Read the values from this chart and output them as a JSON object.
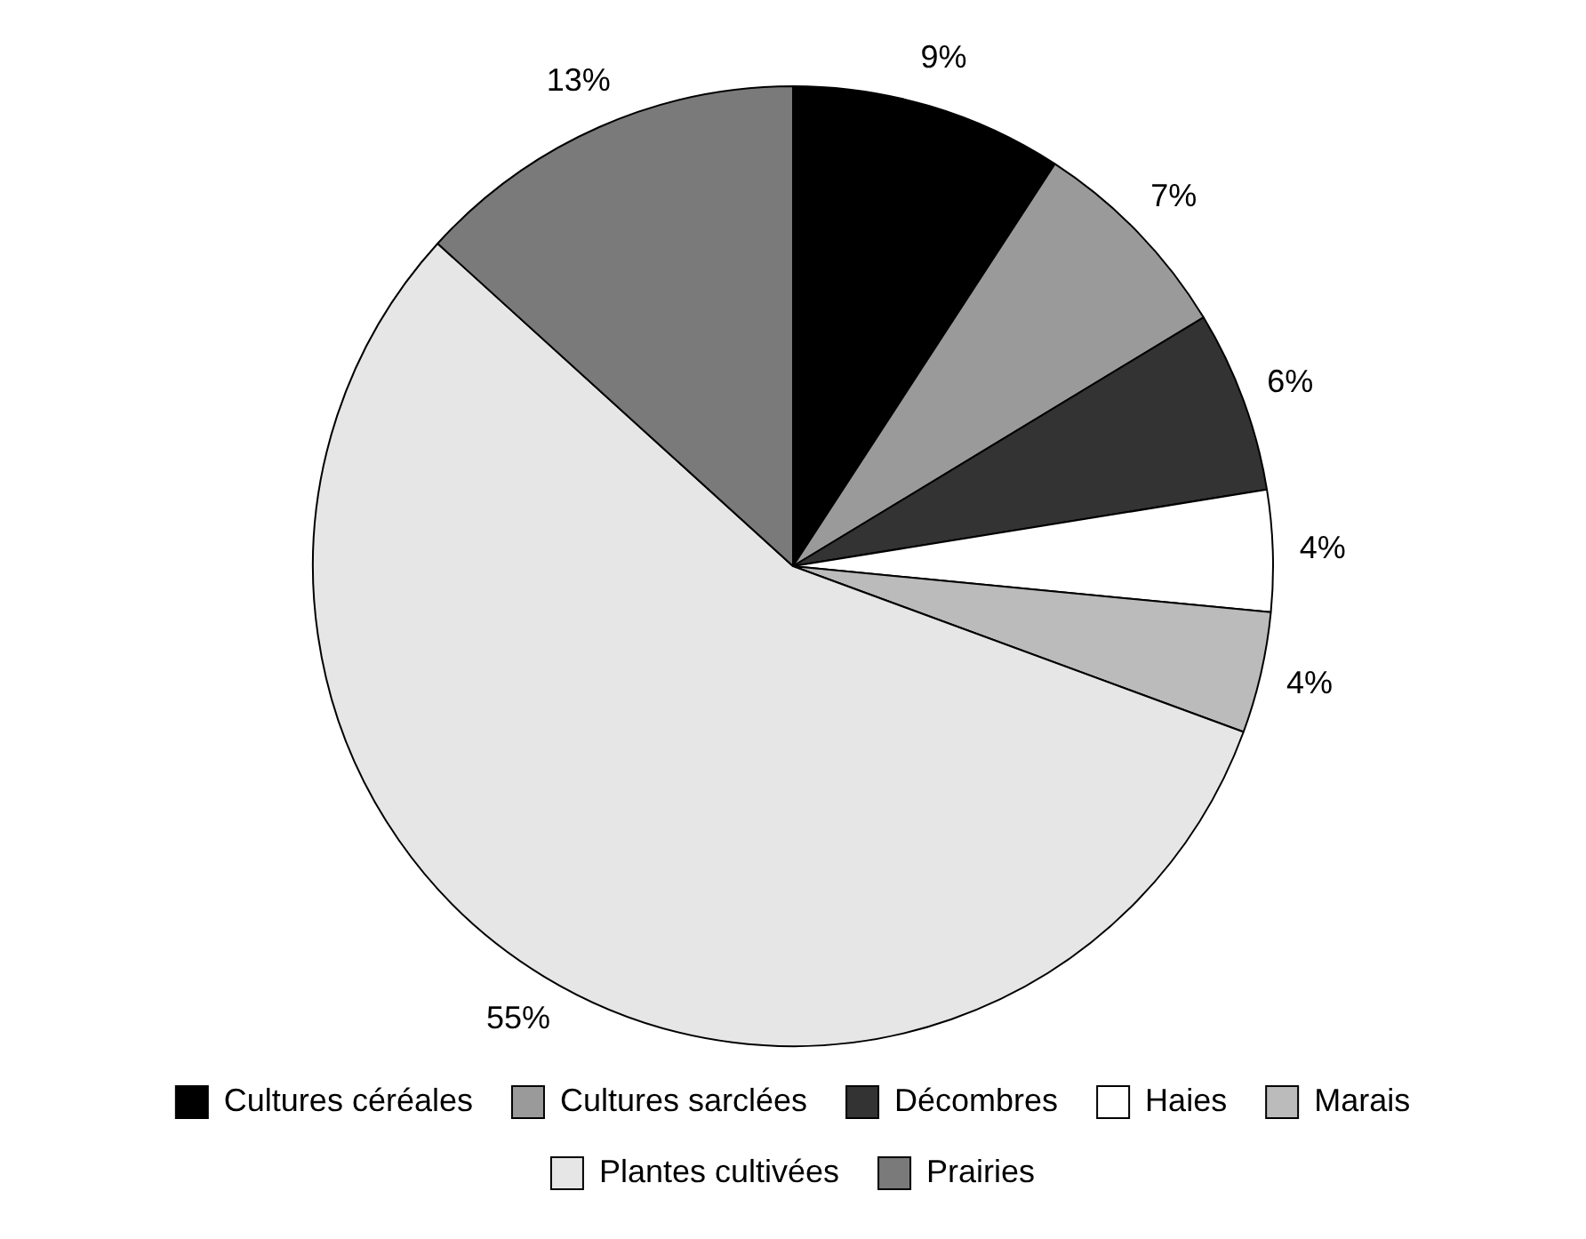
{
  "chart_data": {
    "type": "pie",
    "categories": [
      "Cultures céréales",
      "Cultures sarclées",
      "Décombres",
      "Haies",
      "Marais",
      "Plantes cultivées",
      "Prairies"
    ],
    "values": [
      9,
      7,
      6,
      4,
      4,
      55,
      13
    ],
    "colors": [
      "#000000",
      "#9a9a9a",
      "#333333",
      "#ffffff",
      "#bbbbbb",
      "#e6e6e6",
      "#7a7a7a"
    ],
    "value_labels": [
      "9%",
      "7%",
      "6%",
      "4%",
      "4%",
      "55%",
      "13%"
    ],
    "legend": "bottom"
  }
}
